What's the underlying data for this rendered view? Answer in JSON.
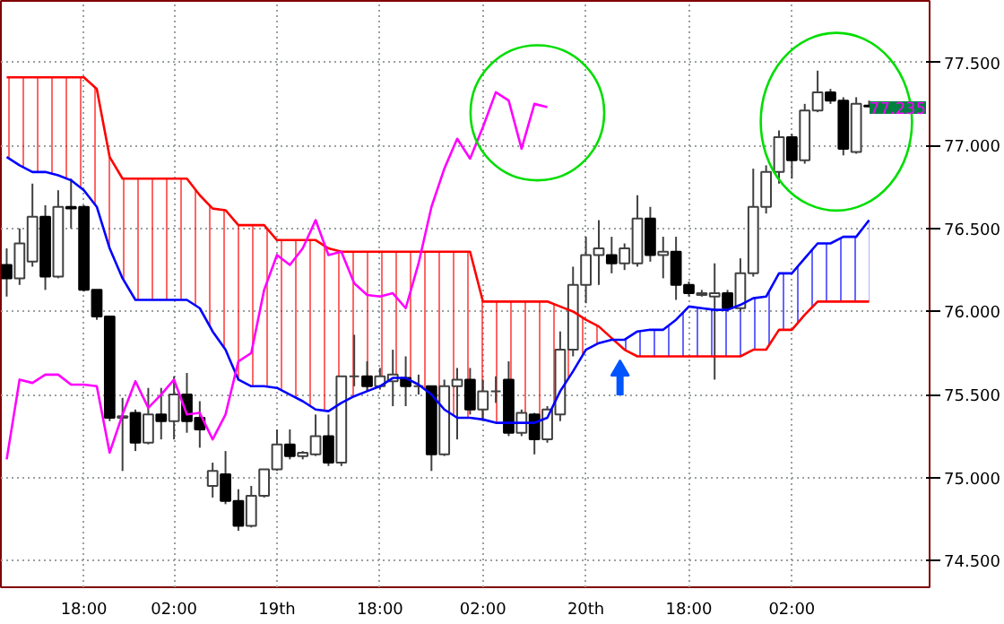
{
  "chart_data": {
    "type": "candlestick",
    "categories": [
      null,
      null,
      null,
      null,
      null,
      null,
      "18:00",
      null,
      null,
      null,
      null,
      null,
      null,
      "02:00",
      null,
      null,
      null,
      null,
      null,
      null,
      null,
      "19th",
      null,
      null,
      null,
      null,
      null,
      null,
      null,
      "18:00",
      null,
      null,
      null,
      null,
      null,
      null,
      null,
      "02:00",
      null,
      null,
      null,
      null,
      null,
      null,
      null,
      "20th",
      null,
      null,
      null,
      null,
      null,
      null,
      null,
      "18:00",
      null,
      null,
      null,
      null,
      null,
      null,
      null,
      "02:00",
      null,
      null,
      null,
      null,
      null,
      null
    ],
    "ohlc": [
      [
        76.28,
        76.38,
        76.09,
        76.2
      ],
      [
        76.2,
        76.5,
        76.16,
        76.41
      ],
      [
        76.3,
        76.77,
        76.27,
        76.57
      ],
      [
        76.57,
        76.64,
        76.13,
        76.21
      ],
      [
        76.21,
        76.73,
        76.2,
        76.63
      ],
      [
        76.63,
        76.8,
        76.5,
        76.62
      ],
      [
        76.63,
        76.64,
        76.12,
        76.13
      ],
      [
        76.13,
        76.13,
        75.95,
        75.97
      ],
      [
        75.97,
        75.97,
        75.34,
        75.36
      ],
      [
        75.36,
        75.48,
        75.04,
        75.37
      ],
      [
        75.39,
        75.41,
        75.16,
        75.21
      ],
      [
        75.21,
        75.54,
        75.2,
        75.38
      ],
      [
        75.38,
        75.54,
        75.23,
        75.34
      ],
      [
        75.34,
        75.61,
        75.23,
        75.5
      ],
      [
        75.5,
        75.63,
        75.27,
        75.34
      ],
      [
        75.36,
        75.46,
        75.18,
        75.29
      ],
      [
        74.95,
        75.09,
        74.88,
        75.04
      ],
      [
        75.02,
        75.16,
        74.84,
        74.86
      ],
      [
        74.86,
        74.93,
        74.68,
        74.71
      ],
      [
        74.71,
        74.95,
        74.7,
        74.89
      ],
      [
        74.89,
        75.05,
        74.88,
        75.05
      ],
      [
        75.05,
        75.29,
        75.04,
        75.2
      ],
      [
        75.2,
        75.29,
        75.11,
        75.13
      ],
      [
        75.13,
        75.16,
        75.11,
        75.15
      ],
      [
        75.14,
        75.38,
        75.13,
        75.25
      ],
      [
        75.25,
        75.38,
        75.07,
        75.09
      ],
      [
        75.09,
        75.61,
        75.07,
        75.61
      ],
      [
        75.61,
        75.86,
        75.55,
        75.61
      ],
      [
        75.61,
        75.7,
        75.52,
        75.55
      ],
      [
        75.55,
        75.66,
        75.53,
        75.61
      ],
      [
        75.58,
        75.77,
        75.43,
        75.62
      ],
      [
        75.6,
        75.73,
        75.43,
        75.55
      ],
      [
        75.55,
        75.62,
        75.5,
        75.55
      ],
      [
        75.55,
        75.55,
        75.04,
        75.14
      ],
      [
        75.14,
        75.59,
        75.13,
        75.55
      ],
      [
        75.55,
        75.66,
        75.23,
        75.59
      ],
      [
        75.59,
        75.66,
        75.38,
        75.41
      ],
      [
        75.41,
        75.59,
        75.34,
        75.52
      ],
      [
        75.52,
        75.61,
        75.45,
        75.52
      ],
      [
        75.59,
        75.7,
        75.25,
        75.27
      ],
      [
        75.27,
        75.41,
        75.25,
        75.39
      ],
      [
        75.38,
        75.39,
        75.14,
        75.23
      ],
      [
        75.23,
        75.43,
        75.21,
        75.41
      ],
      [
        75.38,
        75.88,
        75.34,
        75.77
      ],
      [
        75.77,
        76.27,
        75.73,
        76.16
      ],
      [
        76.16,
        76.45,
        76.05,
        76.34
      ],
      [
        76.34,
        76.55,
        76.16,
        76.38
      ],
      [
        76.34,
        76.45,
        76.23,
        76.29
      ],
      [
        76.29,
        76.41,
        76.25,
        76.38
      ],
      [
        76.29,
        76.7,
        76.27,
        76.56
      ],
      [
        76.56,
        76.63,
        76.3,
        76.34
      ],
      [
        76.34,
        76.45,
        76.2,
        76.36
      ],
      [
        76.36,
        76.45,
        76.07,
        76.16
      ],
      [
        76.16,
        76.18,
        76.09,
        76.11
      ],
      [
        76.1,
        76.13,
        76.09,
        76.11
      ],
      [
        76.09,
        76.29,
        75.59,
        76.11
      ],
      [
        76.11,
        76.13,
        76.0,
        76.02
      ],
      [
        76.02,
        76.32,
        76.0,
        76.23
      ],
      [
        76.23,
        76.86,
        76.21,
        76.63
      ],
      [
        76.63,
        76.88,
        76.59,
        76.84
      ],
      [
        76.84,
        77.09,
        76.77,
        77.05
      ],
      [
        77.05,
        77.07,
        76.8,
        76.91
      ],
      [
        76.91,
        77.25,
        76.89,
        77.21
      ],
      [
        77.21,
        77.45,
        77.2,
        77.32
      ],
      [
        77.32,
        77.34,
        77.25,
        77.27
      ],
      [
        77.27,
        77.29,
        76.94,
        76.98
      ],
      [
        76.96,
        77.29,
        76.95,
        77.25
      ],
      [
        77.24,
        77.27,
        77.23,
        77.235
      ]
    ],
    "series": [
      {
        "type": "line",
        "color": "#ff0000",
        "lower": [
          76.93,
          76.88,
          76.84,
          76.84,
          76.82,
          76.79,
          76.73,
          76.63,
          76.38,
          76.2,
          76.07,
          76.07,
          76.07,
          76.07,
          76.07,
          76.02,
          75.88,
          75.77,
          75.59,
          75.55,
          75.55,
          75.54,
          75.5,
          75.46,
          75.41,
          75.4,
          75.45,
          75.49,
          75.52,
          75.55,
          75.6,
          75.6,
          75.56,
          75.5,
          75.41,
          75.36,
          75.36,
          75.35,
          75.33,
          75.33,
          75.33,
          75.33,
          75.36,
          75.52,
          75.64,
          75.77,
          75.81,
          75.83,
          null,
          null,
          null,
          null,
          null,
          null,
          null,
          null,
          null,
          null,
          null,
          null,
          null,
          null,
          null,
          null,
          null,
          null,
          null,
          null
        ],
        "upper": [
          77.41,
          77.41,
          77.41,
          77.41,
          77.41,
          77.41,
          77.41,
          77.34,
          76.93,
          76.8,
          76.8,
          76.8,
          76.8,
          76.8,
          76.8,
          76.7,
          76.62,
          76.61,
          76.52,
          76.52,
          76.52,
          76.43,
          76.43,
          76.43,
          76.43,
          76.38,
          76.36,
          76.36,
          76.36,
          76.36,
          76.36,
          76.36,
          76.36,
          76.36,
          76.36,
          76.36,
          76.36,
          76.06,
          76.06,
          76.06,
          76.06,
          76.06,
          76.06,
          76.03,
          76.0,
          75.95,
          75.91,
          75.84,
          null,
          null,
          null,
          null,
          null,
          null,
          null,
          null,
          null,
          null,
          null,
          null,
          null,
          null,
          null,
          null,
          null,
          null,
          null,
          null
        ],
        "values": [
          77.41,
          77.41,
          77.41,
          77.41,
          77.41,
          77.41,
          77.41,
          77.34,
          76.93,
          76.8,
          76.8,
          76.8,
          76.8,
          76.8,
          76.8,
          76.7,
          76.62,
          76.61,
          76.52,
          76.52,
          76.52,
          76.43,
          76.43,
          76.43,
          76.43,
          76.38,
          76.36,
          76.36,
          76.36,
          76.36,
          76.36,
          76.36,
          76.36,
          76.36,
          76.36,
          76.36,
          76.36,
          76.06,
          76.06,
          76.06,
          76.06,
          76.06,
          76.06,
          76.03,
          76.0,
          75.95,
          75.91,
          75.84,
          75.77,
          75.73,
          75.73,
          75.73,
          75.73,
          75.73,
          75.73,
          75.73,
          75.73,
          75.73,
          75.77,
          75.77,
          75.89,
          75.89,
          75.98,
          76.06,
          76.06,
          76.06,
          76.06,
          76.06
        ]
      },
      {
        "type": "line",
        "color": "#0000ff",
        "lower": [
          null,
          null,
          null,
          null,
          null,
          null,
          null,
          null,
          null,
          null,
          null,
          null,
          null,
          null,
          null,
          null,
          null,
          null,
          null,
          null,
          null,
          null,
          null,
          null,
          null,
          null,
          null,
          null,
          null,
          null,
          null,
          null,
          null,
          null,
          null,
          null,
          null,
          null,
          null,
          null,
          null,
          null,
          null,
          null,
          null,
          null,
          null,
          75.84,
          75.77,
          75.73,
          75.73,
          75.73,
          75.73,
          75.73,
          75.73,
          75.73,
          75.73,
          75.73,
          75.77,
          75.77,
          75.89,
          75.89,
          75.98,
          76.06,
          76.06,
          76.06,
          76.06,
          76.06
        ],
        "upper": [
          null,
          null,
          null,
          null,
          null,
          null,
          null,
          null,
          null,
          null,
          null,
          null,
          null,
          null,
          null,
          null,
          null,
          null,
          null,
          null,
          null,
          null,
          null,
          null,
          null,
          null,
          null,
          null,
          null,
          null,
          null,
          null,
          null,
          null,
          null,
          null,
          null,
          null,
          null,
          null,
          null,
          null,
          null,
          null,
          null,
          null,
          null,
          75.83,
          75.83,
          75.88,
          75.89,
          75.89,
          75.95,
          76.03,
          76.02,
          76.01,
          76.01,
          76.04,
          76.08,
          76.09,
          76.23,
          76.23,
          76.32,
          76.41,
          76.41,
          76.45,
          76.45,
          76.55
        ],
        "values": [
          76.93,
          76.88,
          76.84,
          76.84,
          76.82,
          76.79,
          76.73,
          76.63,
          76.38,
          76.2,
          76.07,
          76.07,
          76.07,
          76.07,
          76.07,
          76.02,
          75.88,
          75.77,
          75.59,
          75.55,
          75.55,
          75.54,
          75.5,
          75.46,
          75.41,
          75.4,
          75.45,
          75.49,
          75.52,
          75.55,
          75.6,
          75.6,
          75.56,
          75.5,
          75.41,
          75.36,
          75.36,
          75.35,
          75.33,
          75.33,
          75.33,
          75.33,
          75.36,
          75.52,
          75.64,
          75.77,
          75.81,
          75.83,
          75.83,
          75.88,
          75.89,
          75.89,
          75.95,
          76.03,
          76.02,
          76.01,
          76.01,
          76.04,
          76.08,
          76.09,
          76.23,
          76.23,
          76.32,
          76.41,
          76.41,
          76.45,
          76.45,
          76.55
        ]
      },
      {
        "type": "line",
        "color": "#ff00ff",
        "values": [
          75.11,
          75.59,
          75.57,
          75.62,
          75.62,
          75.56,
          75.56,
          75.55,
          75.15,
          75.38,
          75.58,
          75.42,
          75.5,
          75.59,
          75.38,
          75.39,
          75.23,
          75.38,
          75.7,
          75.75,
          76.13,
          76.34,
          76.28,
          76.38,
          76.55,
          76.34,
          76.36,
          76.17,
          76.1,
          76.09,
          76.11,
          76.02,
          76.29,
          76.63,
          76.86,
          77.04,
          76.92,
          77.11,
          77.32,
          77.27,
          76.98,
          77.25,
          77.23,
          null,
          null,
          null,
          null,
          null,
          null,
          null,
          null,
          null,
          null,
          null,
          null,
          null,
          null,
          null,
          null,
          null,
          null,
          null,
          null,
          null,
          null,
          null,
          null,
          null
        ]
      }
    ],
    "ylim": [
      74.34,
      77.87
    ],
    "yticks": [
      {
        "value": 74.5,
        "label": "74.500"
      },
      {
        "value": 75.0,
        "label": "75.000"
      },
      {
        "value": 75.5,
        "label": "75.500"
      },
      {
        "value": 76.0,
        "label": "76.000"
      },
      {
        "value": 76.5,
        "label": "76.500"
      },
      {
        "value": 77.0,
        "label": "77.000"
      },
      {
        "value": 77.5,
        "label": "77.500"
      }
    ],
    "grid": true,
    "annotations": [
      "77.235"
    ]
  }
}
